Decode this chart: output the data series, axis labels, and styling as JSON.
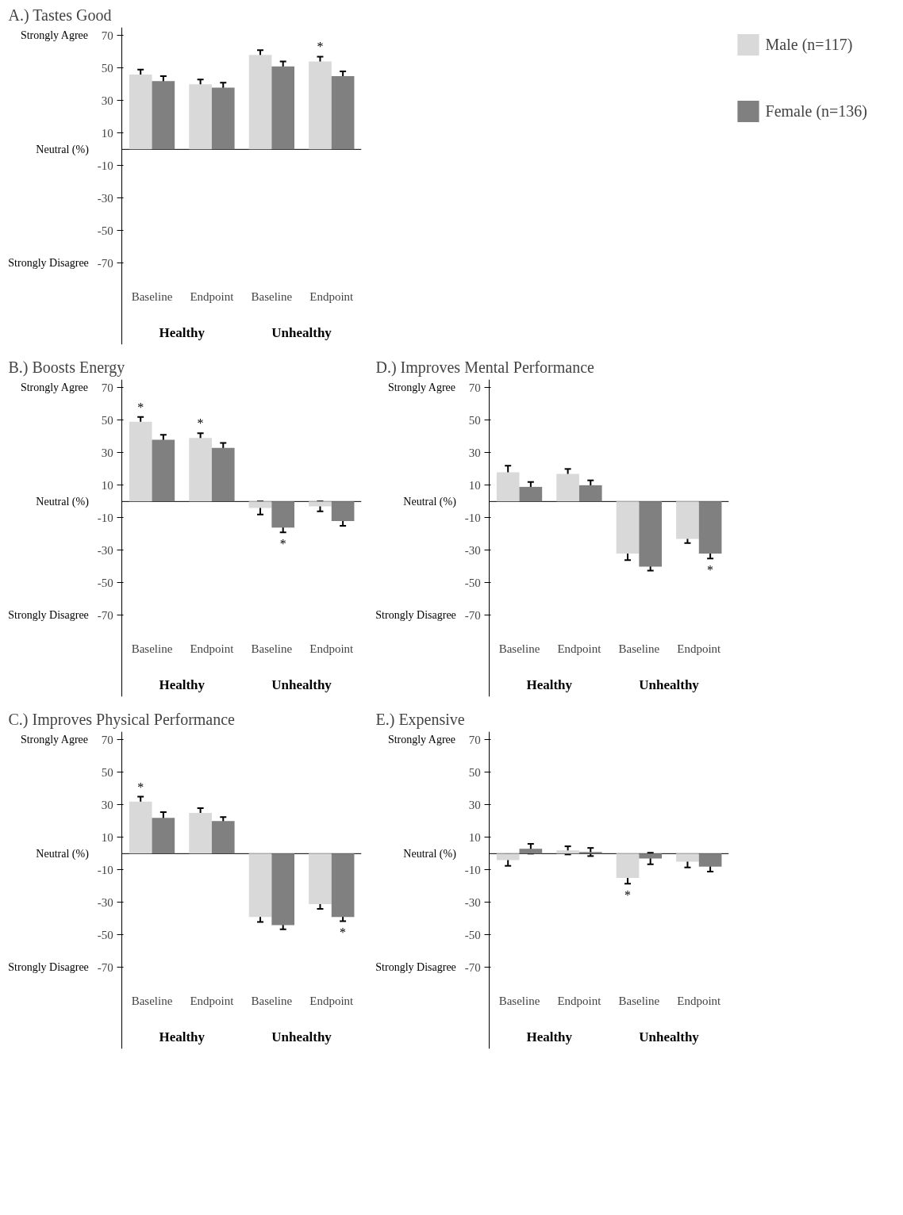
{
  "chart_data": [
    {
      "type": "bar",
      "title": "A.) Tastes Good",
      "categories": [
        "Baseline",
        "Endpoint",
        "Baseline",
        "Endpoint"
      ],
      "ylim": [
        -120,
        75
      ],
      "yticks": [
        70,
        50,
        30,
        10,
        -10,
        -30,
        -50,
        -70
      ],
      "grid": false,
      "legend": "right",
      "series": [
        {
          "name": "Male (n=117)",
          "color": "#d9d9d9",
          "values": [
            46,
            40,
            58,
            54
          ],
          "errors": [
            3,
            3,
            3,
            3
          ],
          "value_labels": [
            null,
            null,
            null,
            "*"
          ]
        },
        {
          "name": "Female (n=136)",
          "color": "#808080",
          "values": [
            42,
            38,
            51,
            45
          ],
          "errors": [
            3,
            3,
            3,
            3
          ],
          "value_labels": [
            null,
            null,
            null,
            null
          ]
        }
      ],
      "annotations": [
        "Strongly Agree",
        "Neutral (%)",
        "Strongly Disagree",
        "Healthy",
        "Unhealthy"
      ]
    },
    {
      "type": "bar",
      "title": "B.) Boosts Energy",
      "categories": [
        "Baseline",
        "Endpoint",
        "Baseline",
        "Endpoint"
      ],
      "ylim": [
        -120,
        75
      ],
      "yticks": [
        70,
        50,
        30,
        10,
        -10,
        -30,
        -50,
        -70
      ],
      "grid": false,
      "series": [
        {
          "color": "#d9d9d9",
          "values": [
            49,
            39,
            -4,
            -3
          ],
          "errors": [
            3,
            3,
            4,
            3
          ],
          "value_labels": [
            "*",
            "*",
            null,
            null
          ]
        },
        {
          "color": "#808080",
          "values": [
            38,
            33,
            -16,
            -12
          ],
          "errors": [
            3,
            3,
            3,
            3
          ],
          "value_labels": [
            null,
            null,
            "*",
            null
          ]
        }
      ],
      "annotations": [
        "Strongly Agree",
        "Neutral (%)",
        "Strongly Disagree",
        "Healthy",
        "Unhealthy"
      ]
    },
    {
      "type": "bar",
      "title": "D.)  Improves Mental Performance",
      "categories": [
        "Baseline",
        "Endpoint",
        "Baseline",
        "Endpoint"
      ],
      "ylim": [
        -120,
        75
      ],
      "yticks": [
        70,
        50,
        30,
        10,
        -10,
        -30,
        -50,
        -70
      ],
      "grid": false,
      "series": [
        {
          "color": "#d9d9d9",
          "values": [
            18,
            17,
            -32,
            -23
          ],
          "errors": [
            4,
            3,
            4,
            2.5
          ],
          "value_labels": [
            null,
            null,
            null,
            null
          ]
        },
        {
          "color": "#808080",
          "values": [
            9,
            10,
            -40,
            -32
          ],
          "errors": [
            3,
            3,
            2.5,
            3
          ],
          "value_labels": [
            null,
            null,
            null,
            "*"
          ]
        }
      ],
      "annotations": [
        "Strongly Agree",
        "Neutral (%)",
        "Strongly Disagree",
        "Healthy",
        "Unhealthy"
      ]
    },
    {
      "type": "bar",
      "title": "C.) Improves Physical Performance",
      "categories": [
        "Baseline",
        "Endpoint",
        "Baseline",
        "Endpoint"
      ],
      "ylim": [
        -120,
        75
      ],
      "yticks": [
        70,
        50,
        30,
        10,
        -10,
        -30,
        -50,
        -70
      ],
      "grid": false,
      "series": [
        {
          "color": "#d9d9d9",
          "values": [
            32,
            25,
            -39,
            -31
          ],
          "errors": [
            3,
            3,
            3,
            3
          ],
          "value_labels": [
            "*",
            null,
            null,
            null
          ]
        },
        {
          "color": "#808080",
          "values": [
            22,
            20,
            -44,
            -39
          ],
          "errors": [
            3.5,
            2.5,
            2.5,
            2.5
          ],
          "value_labels": [
            null,
            null,
            null,
            "*"
          ]
        }
      ],
      "annotations": [
        "Strongly Agree",
        "Neutral (%)",
        "Strongly Disagree",
        "Healthy",
        "Unhealthy"
      ]
    },
    {
      "type": "bar",
      "title": "E.) Expensive",
      "categories": [
        "Baseline",
        "Endpoint",
        "Baseline",
        "Endpoint"
      ],
      "ylim": [
        -120,
        75
      ],
      "yticks": [
        70,
        50,
        30,
        10,
        -10,
        -30,
        -50,
        -70
      ],
      "grid": false,
      "series": [
        {
          "color": "#d9d9d9",
          "values": [
            -4,
            2,
            -15,
            -5
          ],
          "errors": [
            3.5,
            2.5,
            3.5,
            3.5
          ],
          "value_labels": [
            null,
            null,
            "*",
            null
          ]
        },
        {
          "color": "#808080",
          "values": [
            3,
            1,
            -3,
            -8
          ],
          "errors": [
            3,
            2.5,
            3.5,
            3
          ],
          "value_labels": [
            null,
            null,
            null,
            null
          ]
        }
      ],
      "annotations": [
        "Strongly Agree",
        "Neutral (%)",
        "Strongly Disagree",
        "Healthy",
        "Unhealthy"
      ]
    }
  ]
}
